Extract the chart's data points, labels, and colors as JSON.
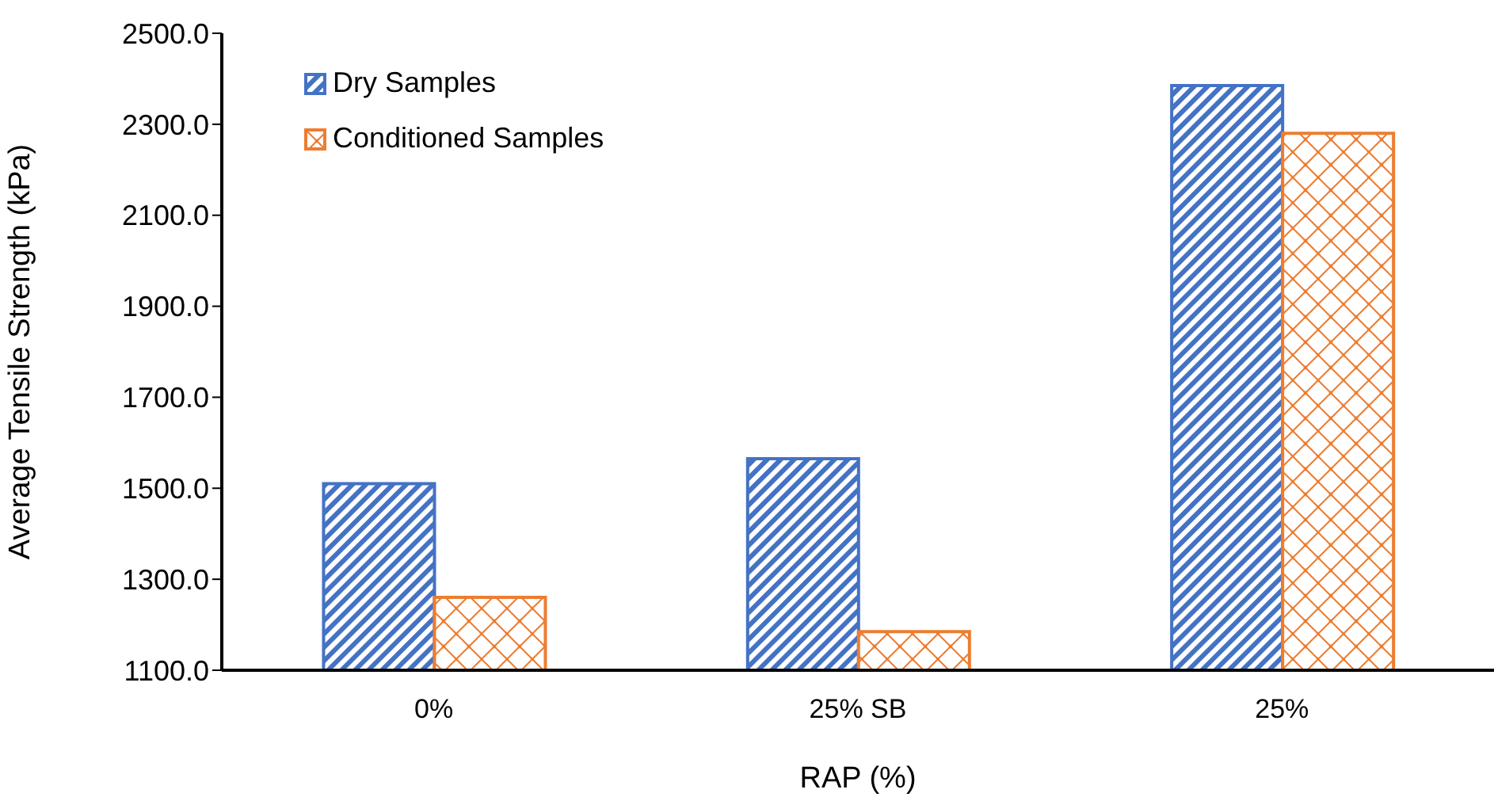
{
  "chart_data": {
    "type": "bar",
    "xlabel": "RAP (%)",
    "ylabel": "Average Tensile Strength (kPa)",
    "categories": [
      "0%",
      "25% SB",
      "25%"
    ],
    "series": [
      {
        "name": "Dry Samples",
        "color": "#4472c4",
        "values": [
          1510,
          1565,
          2385
        ]
      },
      {
        "name": "Conditioned Samples",
        "color": "#ed7d31",
        "values": [
          1260,
          1185,
          2280
        ]
      }
    ],
    "ylim": [
      1100,
      2500
    ],
    "yticks": [
      {
        "value": 1100,
        "label": "1100.0"
      },
      {
        "value": 1300,
        "label": "1300.0"
      },
      {
        "value": 1500,
        "label": "1500.0"
      },
      {
        "value": 1700,
        "label": "1700.0"
      },
      {
        "value": 1900,
        "label": "1900.0"
      },
      {
        "value": 2100,
        "label": "2100.0"
      },
      {
        "value": 2300,
        "label": "2300.0"
      },
      {
        "value": 2500,
        "label": "2500.0"
      }
    ],
    "grid": false,
    "legend": "top left"
  }
}
